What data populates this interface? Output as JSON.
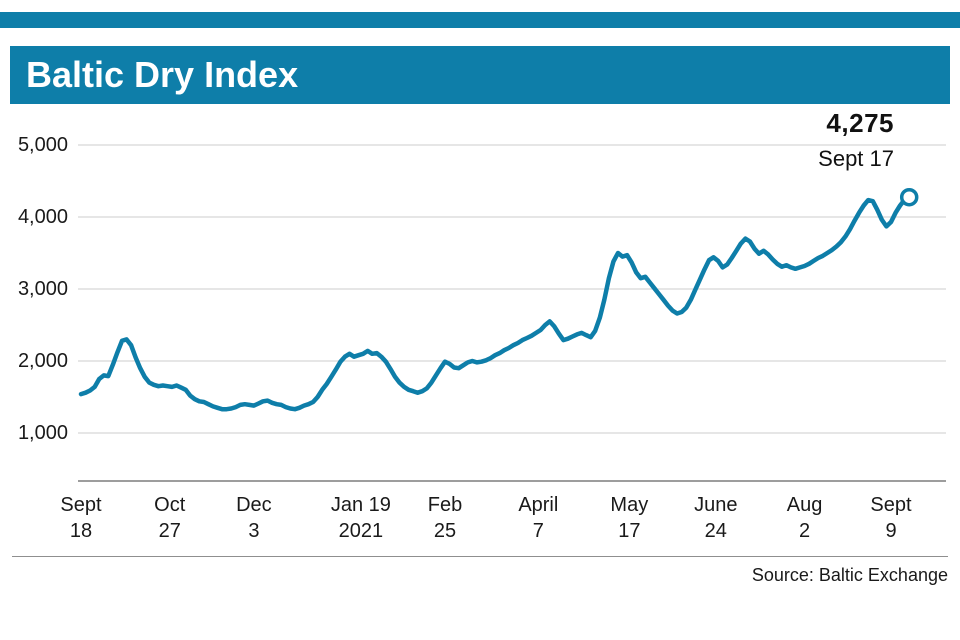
{
  "page": {
    "accent_color": "#0e7ea9",
    "background": "#ffffff"
  },
  "header": {
    "title": "Baltic Dry Index"
  },
  "annotation": {
    "value": "4,275",
    "date": "Sept 17"
  },
  "source": "Source: Baltic Exchange",
  "chart_data": {
    "type": "line",
    "title": "Baltic Dry Index",
    "xlabel": "",
    "ylabel": "",
    "ylim": [
      350,
      5000
    ],
    "grid": "horizontal",
    "line_color": "#0e7ea9",
    "grid_color": "#cccccc",
    "axis_color": "#7d7d7d",
    "y_ticks": [
      {
        "value": 1000,
        "label": "1,000"
      },
      {
        "value": 2000,
        "label": "2,000"
      },
      {
        "value": 3000,
        "label": "3,000"
      },
      {
        "value": 4000,
        "label": "4,000"
      },
      {
        "value": 5000,
        "label": "5,000"
      }
    ],
    "x_ticks": [
      {
        "day": 0,
        "lines": [
          "Sept",
          "18"
        ]
      },
      {
        "day": 39,
        "lines": [
          "Oct",
          "27"
        ]
      },
      {
        "day": 76,
        "lines": [
          "Dec",
          "3"
        ]
      },
      {
        "day": 123,
        "lines": [
          "Jan 19",
          "2021"
        ]
      },
      {
        "day": 160,
        "lines": [
          "Feb",
          "25"
        ]
      },
      {
        "day": 201,
        "lines": [
          "April",
          "7"
        ]
      },
      {
        "day": 241,
        "lines": [
          "May",
          "17"
        ]
      },
      {
        "day": 279,
        "lines": [
          "June",
          "24"
        ]
      },
      {
        "day": 318,
        "lines": [
          "Aug",
          "2"
        ]
      },
      {
        "day": 356,
        "lines": [
          "Sept",
          "9"
        ]
      }
    ],
    "latest": {
      "day": 364,
      "value": 4275,
      "value_label": "4,275",
      "date_label": "Sept 17"
    },
    "series": [
      {
        "name": "Baltic Dry Index",
        "points": [
          [
            0,
            1540
          ],
          [
            2,
            1560
          ],
          [
            4,
            1590
          ],
          [
            6,
            1640
          ],
          [
            8,
            1750
          ],
          [
            10,
            1800
          ],
          [
            12,
            1790
          ],
          [
            14,
            1950
          ],
          [
            16,
            2120
          ],
          [
            18,
            2280
          ],
          [
            20,
            2300
          ],
          [
            22,
            2220
          ],
          [
            24,
            2050
          ],
          [
            26,
            1900
          ],
          [
            28,
            1780
          ],
          [
            30,
            1700
          ],
          [
            32,
            1670
          ],
          [
            34,
            1650
          ],
          [
            36,
            1660
          ],
          [
            38,
            1650
          ],
          [
            40,
            1640
          ],
          [
            42,
            1660
          ],
          [
            44,
            1630
          ],
          [
            46,
            1600
          ],
          [
            48,
            1520
          ],
          [
            50,
            1470
          ],
          [
            52,
            1440
          ],
          [
            54,
            1430
          ],
          [
            56,
            1400
          ],
          [
            58,
            1370
          ],
          [
            60,
            1350
          ],
          [
            62,
            1330
          ],
          [
            64,
            1330
          ],
          [
            66,
            1340
          ],
          [
            68,
            1360
          ],
          [
            70,
            1390
          ],
          [
            72,
            1400
          ],
          [
            74,
            1390
          ],
          [
            76,
            1380
          ],
          [
            78,
            1410
          ],
          [
            80,
            1440
          ],
          [
            82,
            1450
          ],
          [
            84,
            1420
          ],
          [
            86,
            1400
          ],
          [
            88,
            1390
          ],
          [
            90,
            1360
          ],
          [
            92,
            1340
          ],
          [
            94,
            1330
          ],
          [
            96,
            1350
          ],
          [
            98,
            1380
          ],
          [
            100,
            1400
          ],
          [
            102,
            1430
          ],
          [
            104,
            1500
          ],
          [
            106,
            1600
          ],
          [
            108,
            1680
          ],
          [
            110,
            1780
          ],
          [
            112,
            1880
          ],
          [
            114,
            1990
          ],
          [
            116,
            2060
          ],
          [
            118,
            2100
          ],
          [
            120,
            2060
          ],
          [
            122,
            2080
          ],
          [
            124,
            2100
          ],
          [
            126,
            2140
          ],
          [
            128,
            2100
          ],
          [
            130,
            2110
          ],
          [
            132,
            2060
          ],
          [
            134,
            1990
          ],
          [
            136,
            1890
          ],
          [
            138,
            1780
          ],
          [
            140,
            1700
          ],
          [
            142,
            1640
          ],
          [
            144,
            1600
          ],
          [
            146,
            1580
          ],
          [
            148,
            1560
          ],
          [
            150,
            1580
          ],
          [
            152,
            1620
          ],
          [
            154,
            1700
          ],
          [
            156,
            1800
          ],
          [
            158,
            1900
          ],
          [
            160,
            1990
          ],
          [
            162,
            1960
          ],
          [
            164,
            1910
          ],
          [
            166,
            1900
          ],
          [
            168,
            1940
          ],
          [
            170,
            1980
          ],
          [
            172,
            2000
          ],
          [
            174,
            1980
          ],
          [
            176,
            1990
          ],
          [
            178,
            2010
          ],
          [
            180,
            2040
          ],
          [
            182,
            2080
          ],
          [
            184,
            2110
          ],
          [
            186,
            2150
          ],
          [
            188,
            2180
          ],
          [
            190,
            2220
          ],
          [
            192,
            2250
          ],
          [
            194,
            2290
          ],
          [
            196,
            2320
          ],
          [
            198,
            2350
          ],
          [
            200,
            2390
          ],
          [
            202,
            2430
          ],
          [
            204,
            2500
          ],
          [
            206,
            2550
          ],
          [
            208,
            2480
          ],
          [
            210,
            2380
          ],
          [
            212,
            2290
          ],
          [
            214,
            2310
          ],
          [
            216,
            2340
          ],
          [
            218,
            2370
          ],
          [
            220,
            2390
          ],
          [
            222,
            2360
          ],
          [
            224,
            2330
          ],
          [
            226,
            2420
          ],
          [
            228,
            2600
          ],
          [
            230,
            2850
          ],
          [
            232,
            3150
          ],
          [
            234,
            3380
          ],
          [
            236,
            3500
          ],
          [
            238,
            3450
          ],
          [
            240,
            3470
          ],
          [
            242,
            3370
          ],
          [
            244,
            3230
          ],
          [
            246,
            3150
          ],
          [
            248,
            3170
          ],
          [
            250,
            3090
          ],
          [
            252,
            3010
          ],
          [
            254,
            2930
          ],
          [
            256,
            2850
          ],
          [
            258,
            2770
          ],
          [
            260,
            2700
          ],
          [
            262,
            2660
          ],
          [
            264,
            2680
          ],
          [
            266,
            2740
          ],
          [
            268,
            2850
          ],
          [
            270,
            2990
          ],
          [
            272,
            3130
          ],
          [
            274,
            3270
          ],
          [
            276,
            3400
          ],
          [
            278,
            3440
          ],
          [
            280,
            3390
          ],
          [
            282,
            3300
          ],
          [
            284,
            3340
          ],
          [
            286,
            3430
          ],
          [
            288,
            3530
          ],
          [
            290,
            3630
          ],
          [
            292,
            3700
          ],
          [
            294,
            3660
          ],
          [
            296,
            3560
          ],
          [
            298,
            3490
          ],
          [
            300,
            3530
          ],
          [
            302,
            3480
          ],
          [
            304,
            3410
          ],
          [
            306,
            3350
          ],
          [
            308,
            3310
          ],
          [
            310,
            3330
          ],
          [
            312,
            3300
          ],
          [
            314,
            3280
          ],
          [
            316,
            3300
          ],
          [
            318,
            3320
          ],
          [
            320,
            3350
          ],
          [
            322,
            3390
          ],
          [
            324,
            3430
          ],
          [
            326,
            3460
          ],
          [
            328,
            3500
          ],
          [
            330,
            3540
          ],
          [
            332,
            3590
          ],
          [
            334,
            3650
          ],
          [
            336,
            3730
          ],
          [
            338,
            3830
          ],
          [
            340,
            3950
          ],
          [
            342,
            4060
          ],
          [
            344,
            4160
          ],
          [
            346,
            4235
          ],
          [
            348,
            4220
          ],
          [
            350,
            4100
          ],
          [
            352,
            3960
          ],
          [
            354,
            3870
          ],
          [
            356,
            3930
          ],
          [
            358,
            4060
          ],
          [
            360,
            4160
          ],
          [
            362,
            4240
          ],
          [
            364,
            4275
          ]
        ]
      }
    ]
  }
}
